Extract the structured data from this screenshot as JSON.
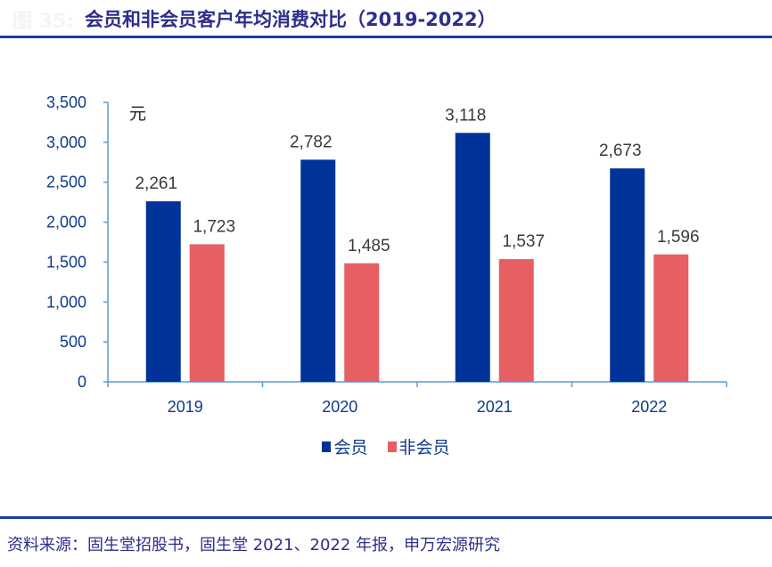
{
  "header": {
    "figure_prefix": "图 35:",
    "title": "会员和非会员客户年均消费对比（2019-2022）"
  },
  "footer": {
    "source": "资料来源：固生堂招股书，固生堂 2021、2022 年报，申万宏源研究"
  },
  "chart_data": {
    "type": "bar",
    "title": "会员和非会员客户年均消费对比（2019-2022）",
    "xlabel": "",
    "ylabel": "元",
    "unit_label": "元",
    "categories": [
      "2019",
      "2020",
      "2021",
      "2022"
    ],
    "series": [
      {
        "name": "会员",
        "color": "#003399",
        "values": [
          2261,
          2782,
          3118,
          2673
        ],
        "labels": [
          "2,261",
          "2,782",
          "3,118",
          "2,673"
        ]
      },
      {
        "name": "非会员",
        "color": "#e65f62",
        "values": [
          1723,
          1485,
          1537,
          1596
        ],
        "labels": [
          "1,723",
          "1,485",
          "1,537",
          "1,596"
        ]
      }
    ],
    "ylim": [
      0,
      3500
    ],
    "yticks": [
      0,
      500,
      1000,
      1500,
      2000,
      2500,
      3000,
      3500
    ],
    "ytick_labels": [
      "0",
      "500",
      "1,000",
      "1,500",
      "2,000",
      "2,500",
      "3,000",
      "3,500"
    ],
    "grid": false,
    "legend_position": "bottom-center",
    "axis_color": "#5b9bd5"
  }
}
